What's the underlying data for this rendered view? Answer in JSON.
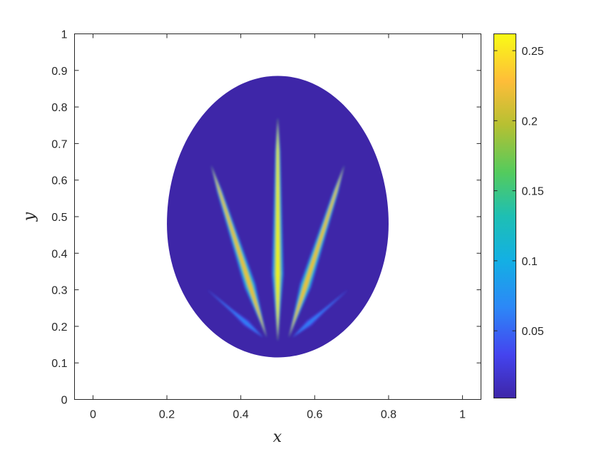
{
  "chart_data": {
    "type": "heatmap",
    "title": "",
    "xlabel": "x",
    "ylabel": "y",
    "xlim": [
      -0.05,
      1.05
    ],
    "ylim": [
      0,
      1
    ],
    "x_ticks": [
      0,
      0.2,
      0.4,
      0.6,
      0.8,
      1
    ],
    "x_tick_labels": [
      "0",
      "0.2",
      "0.4",
      "0.6",
      "0.8",
      "1"
    ],
    "y_ticks": [
      0,
      0.1,
      0.2,
      0.3,
      0.4,
      0.5,
      0.6,
      0.7,
      0.8,
      0.9,
      1
    ],
    "y_tick_labels": [
      "0",
      "0.1",
      "0.2",
      "0.3",
      "0.4",
      "0.5",
      "0.6",
      "0.7",
      "0.8",
      "0.9",
      "1"
    ],
    "grid": false,
    "colormap": "parula",
    "colorbar": {
      "range": [
        0.002,
        0.262
      ],
      "ticks": [
        0.05,
        0.1,
        0.15,
        0.2,
        0.25
      ],
      "tick_labels": [
        "0.05",
        "0.1",
        "0.15",
        "0.2",
        "0.25"
      ]
    },
    "domain_shape": {
      "description": "lens",
      "top": [
        0.5,
        0.885
      ],
      "bottom": [
        0.5,
        0.115
      ],
      "left": [
        0.2,
        0.48
      ],
      "right": [
        0.8,
        0.48
      ]
    },
    "background_value": 0.003,
    "streaks": [
      {
        "name": "center",
        "from": [
          0.5,
          0.16
        ],
        "to": [
          0.5,
          0.77
        ],
        "peak": 0.262
      },
      {
        "name": "inner-left",
        "from": [
          0.47,
          0.17
        ],
        "to": [
          0.32,
          0.64
        ],
        "peak": 0.23
      },
      {
        "name": "inner-right",
        "from": [
          0.53,
          0.17
        ],
        "to": [
          0.68,
          0.64
        ],
        "peak": 0.23
      },
      {
        "name": "outer-left",
        "from": [
          0.46,
          0.17
        ],
        "to": [
          0.31,
          0.3
        ],
        "peak": 0.07
      },
      {
        "name": "outer-right",
        "from": [
          0.54,
          0.17
        ],
        "to": [
          0.69,
          0.3
        ],
        "peak": 0.07
      }
    ]
  }
}
